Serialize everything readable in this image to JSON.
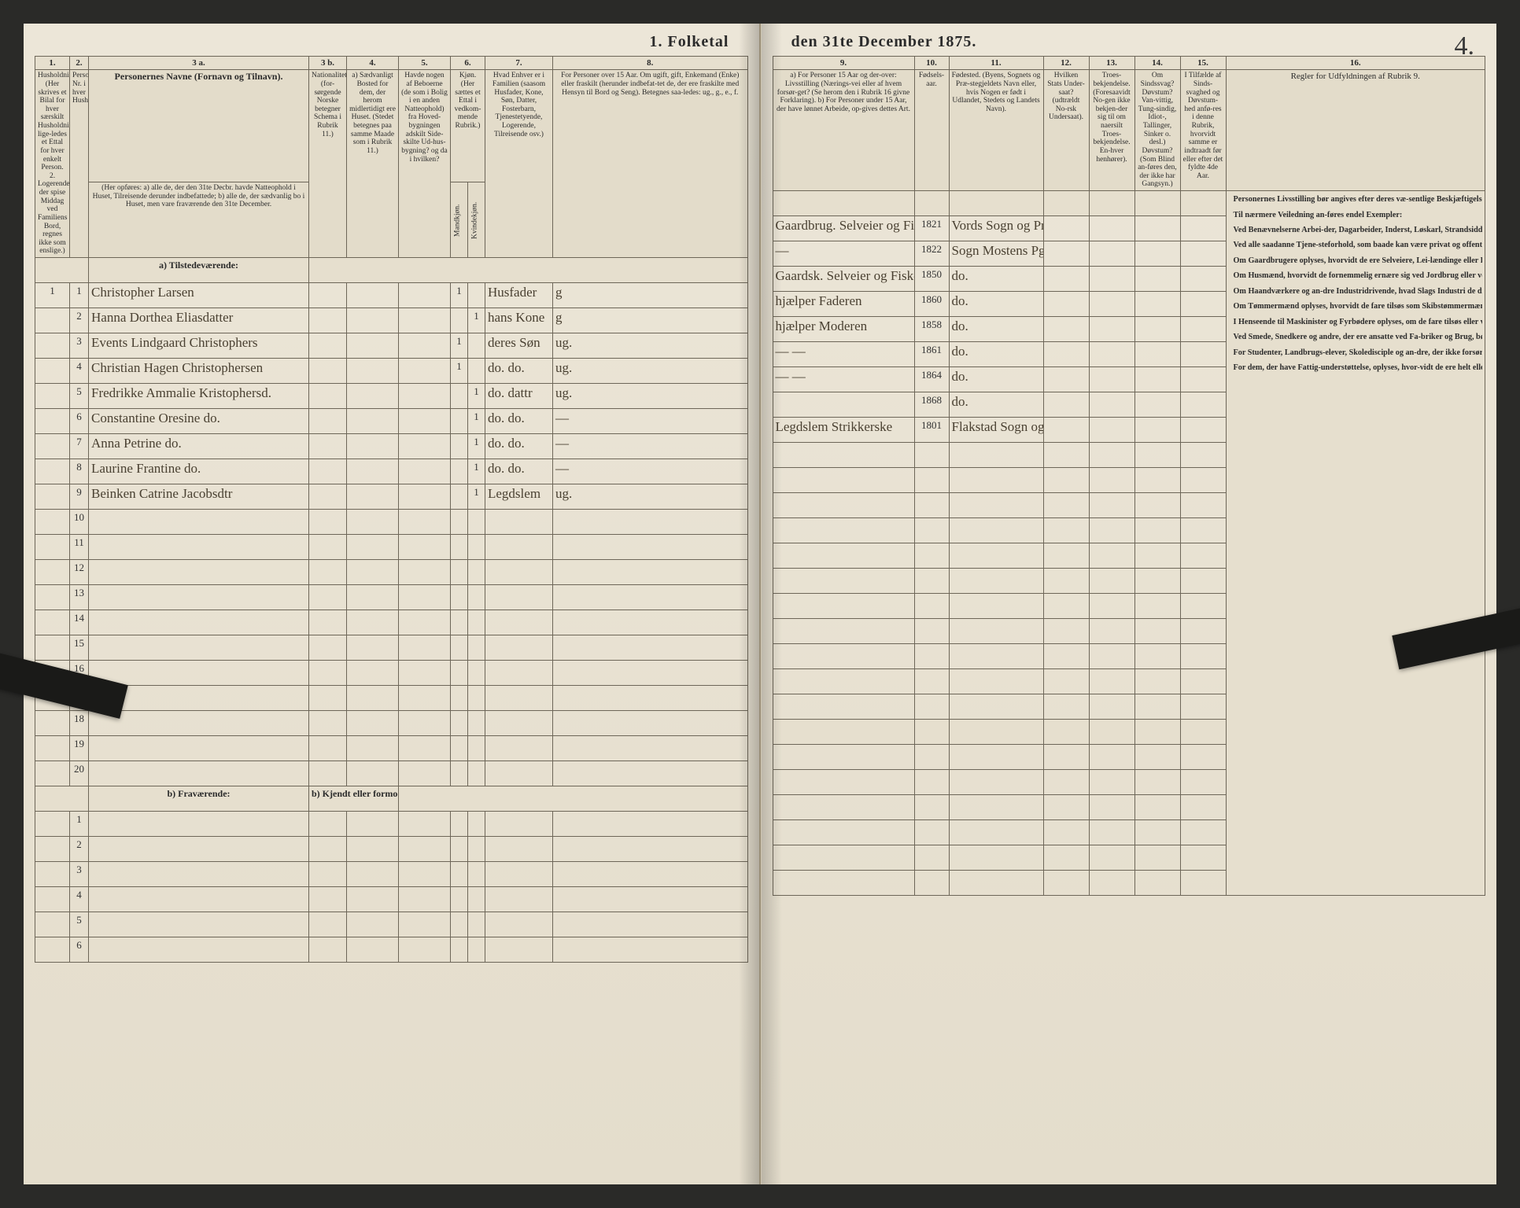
{
  "document": {
    "title_left": "1.  Folketal",
    "title_right": "den 31te December 1875.",
    "page_number_script": "4.",
    "background_color": "#e8e2d4",
    "ink_color": "#2b2b2b",
    "rule_color": "#6d6658"
  },
  "left_header": {
    "colnums": [
      "1.",
      "2.",
      "3 a.",
      "3 b.",
      "4.",
      "5.",
      "6.",
      "7.",
      "8."
    ],
    "col1": "Husholdninger. (Her skrives et Bilal for hver særskilt Husholdning; lige-ledes et Ettal for hver enkelt Person. 2. Logerende, der spise Middag ved Familiens Bord, regnes ikke som enslige.)",
    "col2": "Personernes Nr. i hver Husholdning.",
    "col3a_title": "Personernes Navne (Fornavn og Tilnavn).",
    "col3a_sub": "(Her opføres: a) alle de, der den 31te Decbr. havde Natteophold i Huset, Tilreisende derunder indbefattede; b) alle de, der sædvanlig bo i Huset, men vare fraværende den 31te December.",
    "col3b": "Nationalitet. (for-sørgende Norske betegner Schema i Rubrik 11.)",
    "col4": "a) Sædvanligt Bosted for dem, der herom midlertidigt ere Huset. (Stedet betegnes paa samme Maade som i Rubrik 11.)",
    "col5": "Havde nogen af Beboerne (de som i Bolig i en anden Natteophold) fra Hoved-bygningen adskilt Side-skilte Ud-hus-bygning? og da i hvilken?",
    "col6": "Kjøn. (Her sættes et Ettal i vedkom-mende Rubrik.)",
    "col6_m": "Mandkjøn.",
    "col6_k": "Kvindekjøn.",
    "col7": "Hvad Enhver er i Familien (saasom Husfader, Kone, Søn, Datter, Fosterbarn, Tjenestetyende, Logerende, Tilreisende osv.)",
    "col8": "For Personer over 15 Aar. Om ugift, gift, Enkemand (Enke) eller fraskilt (herunder indbefat-tet de, der ere fraskilte med Hensyn til Bord og Seng). Betegnes saa-ledes: ug., g., e., f.",
    "section_a": "a) Tilstedeværende:",
    "section_b": "b) Fraværende:",
    "section_b_right": "b) Kjendt eller formodet Opholdssted."
  },
  "right_header": {
    "colnums": [
      "9.",
      "10.",
      "11.",
      "12.",
      "13.",
      "14.",
      "15.",
      "16."
    ],
    "col9": "a) For Personer 15 Aar og der-over: Livsstilling (Nærings-vei eller af hvem forsør-get? (Se herom den i Rubrik 16 givne Forklaring). b) For Personer under 15 Aar, der have lønnet Arbeide, op-gives dettes Art.",
    "col10": "Fødsels-aar.",
    "col11": "Fødested. (Byens, Sognets og Præ-stegjeldets Navn eller, hvis Nogen er født i Udlandet, Stedets og Landets Navn).",
    "col12": "Hvilken Stats Under-saat? (udtrældt No-rsk Undersaat).",
    "col13": "Troes-bekjendelse. (Foresaavidt No-gen ikke bekjen-der sig til om naersilt Troes-bekjendelse. En-hver henhører).",
    "col14": "Om Sindssvag? Døvstum? Van-vittig, Tung-sindig, Idiot-, Tallinger, Sinker o. desl.) Døvstum? (Som Blind an-føres den, der ikke har Gangsyn.)",
    "col15": "I Tilfælde af Sinds-svaghed og Døvstum-hed anfø-res i denne Rubrik, hvorvidt samme er indtraadt før eller efter det fyldte 4de Aar.",
    "col16": "Regler for Udfyldningen af Rubrik 9."
  },
  "rows": [
    {
      "hh": "1",
      "pn": "1",
      "name": "Christopher Larsen",
      "kj_m": "1",
      "kj_k": "",
      "fam": "Husfader",
      "civ": "g",
      "stilling": "Gaardbrug. Selveier og Fisker ved Havet",
      "aar": "1821",
      "fsted": "Vords Sogn og Prestegj."
    },
    {
      "hh": "",
      "pn": "2",
      "name": "Hanna Dorthea Eliasdatter",
      "kj_m": "",
      "kj_k": "1",
      "fam": "hans Kone",
      "civ": "g",
      "stilling": "—",
      "aar": "1822",
      "fsted": "Sogn Mostens Pgd."
    },
    {
      "hh": "",
      "pn": "3",
      "name": "Events Lindgaard Christophers",
      "kj_m": "1",
      "kj_k": "",
      "fam": "deres Søn",
      "civ": "ug.",
      "stilling": "Gaardsk. Selveier og Fisker",
      "aar": "1850",
      "fsted": "do."
    },
    {
      "hh": "",
      "pn": "4",
      "name": "Christian Hagen Christophersen",
      "kj_m": "1",
      "kj_k": "",
      "fam": "do. do.",
      "civ": "ug.",
      "stilling": "hjælper Faderen",
      "aar": "1860",
      "fsted": "do."
    },
    {
      "hh": "",
      "pn": "5",
      "name": "Fredrikke Ammalie Kristophersd.",
      "kj_m": "",
      "kj_k": "1",
      "fam": "do. dattr",
      "civ": "ug.",
      "stilling": "hjælper Moderen",
      "aar": "1858",
      "fsted": "do."
    },
    {
      "hh": "",
      "pn": "6",
      "name": "Constantine Oresine do.",
      "kj_m": "",
      "kj_k": "1",
      "fam": "do. do.",
      "civ": "—",
      "stilling": "—  —",
      "aar": "1861",
      "fsted": "do."
    },
    {
      "hh": "",
      "pn": "7",
      "name": "Anna Petrine do.",
      "kj_m": "",
      "kj_k": "1",
      "fam": "do. do.",
      "civ": "—",
      "stilling": "—  —",
      "aar": "1864",
      "fsted": "do."
    },
    {
      "hh": "",
      "pn": "8",
      "name": "Laurine Frantine do.",
      "kj_m": "",
      "kj_k": "1",
      "fam": "do. do.",
      "civ": "—",
      "stilling": "",
      "aar": "1868",
      "fsted": "do."
    },
    {
      "hh": "",
      "pn": "9",
      "name": "Beinken Catrine Jacobsdtr",
      "kj_m": "",
      "kj_k": "1",
      "fam": "Legdslem",
      "civ": "ug.",
      "stilling": "Legdslem Strikkerske",
      "aar": "1801",
      "fsted": "Flakstad Sogn og Pr."
    }
  ],
  "blank_rows_a": [
    "10",
    "11",
    "12",
    "13",
    "14",
    "15",
    "16",
    "17",
    "18",
    "19",
    "20"
  ],
  "blank_rows_b": [
    "1",
    "2",
    "3",
    "4",
    "5",
    "6"
  ],
  "rules_text": {
    "p1": "Personernes Livsstilling bør angives efter deres væ-sentlige Beskjæftigelse eller Næringsvei med Udelukkelse af Benævnelser, der kun be-tegne Beklædelse af Ombud, tagne Examina eller andre ydre Egenskaber. Forener Skatteyderen flere Beskjæfti-gelser, der kunne ansees som uvæsentlige, bør han opføres med dobbelt Livsstilling, idet hans vigtigste Erhvervskilde sættes først; f. Ex. Gaardbru-ger og Fisker; Skibsreder og Gaardbruger o. s. v. Forøv-rigt bør Stillingen opgives saa bestemt, specielt og nøiagtigt som muligt.",
    "p2": "Til nærmere Veiledning an-føres endel Exempler:",
    "p3": "Ved Benævnelserne Arbei-der, Dagarbeider, Inderst, Løskarl, Strandsidder el-lign., bør tilføies det Slags Arbeide, hvormed vedkom-mende hovedsagelig er syssel-sat; f. Ex. Jordbrug, Tomte-arbeide, Veiarbeide, hvilket Slags Fabrik- eller Haand-værksarbeide o. s. v.",
    "p4": "Ved alle saadanne Tjene-steforhold, som baade kan være privat og offentligt, bør Forholdets Art opgives, t. Ex. ved Regnskabsførere, om de ere ansatte ved en privat eller ved en offentlig Indretning og da hvilken; lignende ved Fuld-mægtig, Kontorist, Opsyns-mand, Forvalter, Assistent, Lærer, Ingeniør og andre.",
    "p5": "Om Gaardbrugere oplyses, hvorvidt de ere Selveiere, Lei-lændinge eller Forpagtere.",
    "p6": "Om Husmænd, hvorvidt de fornemmelig ernære sig ved Jordbrug eller ved hvad de beide, og da af hvad Slags.",
    "p7": "Om Haandværkere og an-dre Industridrivende, hvad Slags Industri de drive, og om de drive disse selv-stændigt eller ere i andres Arbeide.",
    "p8": "Om Tømmermænd oplyses, hvorvidt de fare tilsøs som Skibstømmermænd, eller ar-beide paa Skibsværfter, eller beskjæftiges ved andet Tøm-mermandsarbeide.",
    "p9": "I Henseende til Maskinister og Fyrbødere oplyses, om de fare tilsøs eller ved hvilket Slags Fabrikdrift eller anden Virksomhedsgren de ere an-satte.",
    "p10": "Ved Smede, Snedkere og andre, der ere ansatte ved Fa-briker og Brug, bør dettes Navn opgives.",
    "p11": "For Studenter, Landbrugs-elever, Skoledisciple og an-dre, der ikke forsørge sig selv, bør Forsørgerens Livs-stilling opgives, forsaavidt de ikke bo sammen med denne.",
    "p12": "For dem, der have Fattig-understøttelse, oplyses, hvor-vidt de ere helt eller delvis understøttede og i sidste Til-fælde, hvad de forøvrigt er-nære sig ved."
  }
}
